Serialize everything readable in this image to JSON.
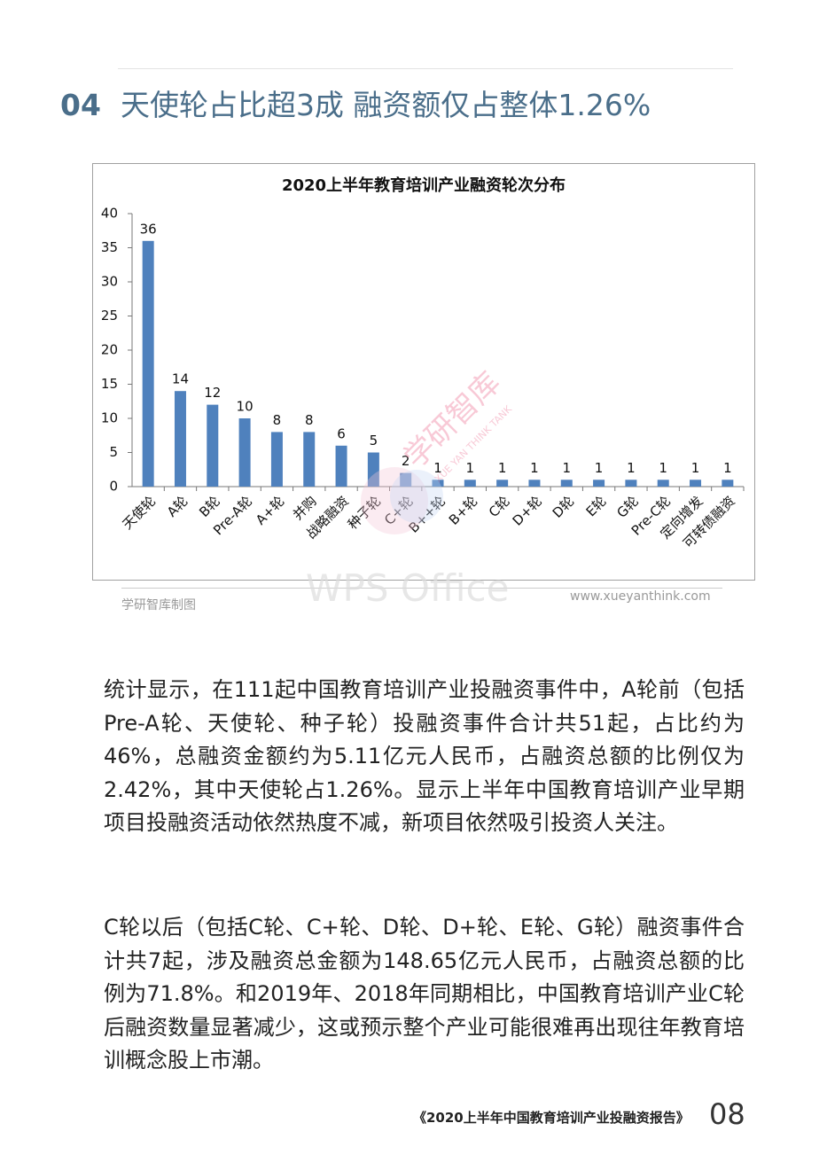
{
  "header": {
    "number": "04",
    "title": "天使轮占比超3成 融资额仅占整体1.26%"
  },
  "chart_data": {
    "type": "bar",
    "title": "2020上半年教育培训产业融资轮次分布",
    "categories": [
      "天使轮",
      "A轮",
      "B轮",
      "Pre-A轮",
      "A+轮",
      "并购",
      "战略融资",
      "种子轮",
      "C+轮",
      "B++轮",
      "B+轮",
      "C轮",
      "D+轮",
      "D轮",
      "E轮",
      "G轮",
      "Pre-C轮",
      "定向增发",
      "可转债融资"
    ],
    "values": [
      36,
      14,
      12,
      10,
      8,
      8,
      6,
      5,
      2,
      1,
      1,
      1,
      1,
      1,
      1,
      1,
      1,
      1,
      1
    ],
    "color": "#4f81bd",
    "ylim": [
      0,
      40
    ],
    "yticks": [
      0,
      5,
      10,
      15,
      20,
      25,
      30,
      35,
      40
    ],
    "grid": false
  },
  "watermarks": [
    "学研智库",
    "XUE YAN THINK TANK",
    "WPS Office"
  ],
  "source": "学研智库制图",
  "website": "www.xueyanthink.com",
  "paragraphs": [
    "统计显示，在111起中国教育培训产业投融资事件中，A轮前（包括Pre-A轮、天使轮、种子轮）投融资事件合计共51起，占比约为46%，总融资金额约为5.11亿元人民币，占融资总额的比例仅为2.42%，其中天使轮占1.26%。显示上半年中国教育培训产业早期项目投融资活动依然热度不减，新项目依然吸引投资人关注。",
    "C轮以后（包括C轮、C+轮、D轮、D+轮、E轮、G轮）融资事件合计共7起，涉及融资总金额为148.65亿元人民币，占融资总额的比例为71.8%。和2019年、2018年同期相比，中国教育培训产业C轮后融资数量显著减少，这或预示整个产业可能很难再出现往年教育培训概念股上市潮。"
  ],
  "footer": {
    "report": "《2020上半年中国教育培训产业投融资报告》",
    "page": "08"
  }
}
